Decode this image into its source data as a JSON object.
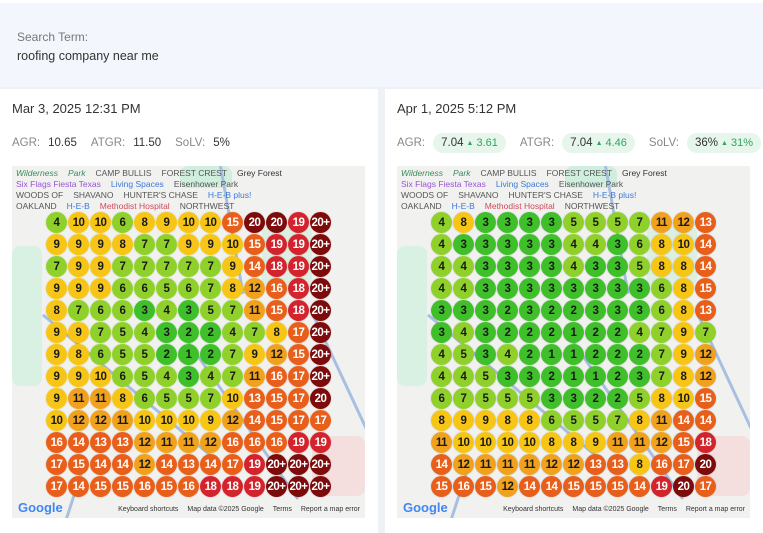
{
  "search": {
    "label": "Search Term:",
    "value": "roofing company near me"
  },
  "map_labels": {
    "wilderness": "Wilderness",
    "park": "Park",
    "camp_bullis": "CAMP BULLIS",
    "forest_crest": "FOREST CREST",
    "grey_forest": "Grey Forest",
    "six_flags": "Six Flags Fiesta Texas",
    "living_spaces": "Living Spaces",
    "eisenhower": "Eisenhower Park",
    "woods": "WOODS OF",
    "shavano": "SHAVANO",
    "hunters_chase": "HUNTER'S CHASE",
    "heb_plus": "H-E-B plus!",
    "oakland": "OAKLAND",
    "heb": "H-E-B",
    "methodist": "Methodist Hospital",
    "northwest": "NORTHWEST",
    "google": "Google",
    "keyboard": "Keyboard shortcuts",
    "map_data": "Map data ©2025 Google",
    "terms": "Terms",
    "report": "Report a map error"
  },
  "scans": [
    {
      "date": "Mar 3, 2025 12:31 PM",
      "agr": {
        "label": "AGR:",
        "value": "10.65"
      },
      "atgr": {
        "label": "ATGR:",
        "value": "11.50"
      },
      "solv": {
        "label": "SoLV:",
        "value": "5%"
      },
      "grid": [
        [
          "4",
          "10",
          "10",
          "6",
          "8",
          "9",
          "10",
          "10",
          "15",
          "20",
          "20",
          "19",
          "20+"
        ],
        [
          "9",
          "9",
          "9",
          "8",
          "7",
          "7",
          "9",
          "9",
          "10",
          "15",
          "19",
          "19",
          "20+"
        ],
        [
          "7",
          "9",
          "9",
          "7",
          "7",
          "7",
          "7",
          "7",
          "9",
          "14",
          "18",
          "19",
          "20+"
        ],
        [
          "9",
          "9",
          "9",
          "6",
          "6",
          "5",
          "6",
          "7",
          "8",
          "12",
          "16",
          "18",
          "20+"
        ],
        [
          "8",
          "7",
          "6",
          "6",
          "3",
          "4",
          "3",
          "5",
          "7",
          "11",
          "15",
          "18",
          "20+"
        ],
        [
          "9",
          "9",
          "7",
          "5",
          "4",
          "3",
          "2",
          "2",
          "4",
          "7",
          "8",
          "17",
          "20+"
        ],
        [
          "9",
          "8",
          "6",
          "5",
          "5",
          "2",
          "1",
          "2",
          "7",
          "9",
          "12",
          "15",
          "20+"
        ],
        [
          "9",
          "9",
          "10",
          "6",
          "5",
          "4",
          "3",
          "4",
          "7",
          "11",
          "16",
          "17",
          "20+"
        ],
        [
          "9",
          "11",
          "11",
          "8",
          "6",
          "5",
          "5",
          "7",
          "10",
          "13",
          "15",
          "17",
          "20"
        ],
        [
          "10",
          "12",
          "12",
          "11",
          "10",
          "10",
          "10",
          "9",
          "12",
          "14",
          "15",
          "17",
          "17"
        ],
        [
          "16",
          "14",
          "13",
          "13",
          "12",
          "11",
          "11",
          "12",
          "16",
          "16",
          "16",
          "19",
          "19"
        ],
        [
          "17",
          "15",
          "14",
          "14",
          "12",
          "14",
          "13",
          "14",
          "17",
          "19",
          "20+",
          "20+",
          "20+"
        ],
        [
          "17",
          "14",
          "15",
          "15",
          "16",
          "15",
          "16",
          "18",
          "18",
          "19",
          "20+",
          "20+",
          "20+"
        ]
      ]
    },
    {
      "date": "Apr 1, 2025 5:12 PM",
      "agr": {
        "label": "AGR:",
        "value": "7.04",
        "delta": "3.61"
      },
      "atgr": {
        "label": "ATGR:",
        "value": "7.04",
        "delta": "4.46"
      },
      "solv": {
        "label": "SoLV:",
        "value": "36%",
        "delta": "31%"
      },
      "grid": [
        [
          "4",
          "8",
          "3",
          "3",
          "3",
          "3",
          "5",
          "5",
          "5",
          "7",
          "11",
          "12",
          "13"
        ],
        [
          "4",
          "3",
          "3",
          "3",
          "3",
          "3",
          "4",
          "4",
          "3",
          "6",
          "8",
          "10",
          "14"
        ],
        [
          "4",
          "4",
          "3",
          "3",
          "3",
          "3",
          "4",
          "3",
          "3",
          "5",
          "8",
          "8",
          "14"
        ],
        [
          "4",
          "4",
          "3",
          "3",
          "3",
          "3",
          "3",
          "3",
          "3",
          "3",
          "6",
          "8",
          "15"
        ],
        [
          "3",
          "3",
          "3",
          "2",
          "3",
          "2",
          "2",
          "3",
          "3",
          "3",
          "6",
          "8",
          "13"
        ],
        [
          "3",
          "4",
          "3",
          "2",
          "2",
          "2",
          "1",
          "2",
          "2",
          "4",
          "7",
          "9",
          "7"
        ],
        [
          "4",
          "5",
          "3",
          "4",
          "2",
          "1",
          "1",
          "2",
          "2",
          "2",
          "7",
          "9",
          "12"
        ],
        [
          "4",
          "4",
          "5",
          "3",
          "3",
          "2",
          "1",
          "1",
          "2",
          "3",
          "7",
          "8",
          "12"
        ],
        [
          "6",
          "7",
          "5",
          "5",
          "5",
          "3",
          "3",
          "2",
          "2",
          "5",
          "8",
          "10",
          "15"
        ],
        [
          "8",
          "9",
          "9",
          "8",
          "8",
          "6",
          "5",
          "5",
          "7",
          "8",
          "11",
          "14",
          "14"
        ],
        [
          "11",
          "10",
          "10",
          "10",
          "10",
          "8",
          "8",
          "9",
          "11",
          "11",
          "12",
          "15",
          "18"
        ],
        [
          "14",
          "12",
          "11",
          "11",
          "11",
          "12",
          "12",
          "13",
          "13",
          "8",
          "16",
          "17",
          "20"
        ],
        [
          "15",
          "16",
          "15",
          "12",
          "14",
          "14",
          "15",
          "15",
          "15",
          "14",
          "19",
          "20",
          "17"
        ]
      ]
    }
  ],
  "colors": {
    "green": "#3fbf2a",
    "lime": "#8fd12a",
    "yellow": "#f6c516",
    "amber": "#f0a21e",
    "orange": "#e85f1c",
    "red": "#d3242e",
    "darkred": "#7d0b0b",
    "delta_up": "#2fa65a"
  }
}
